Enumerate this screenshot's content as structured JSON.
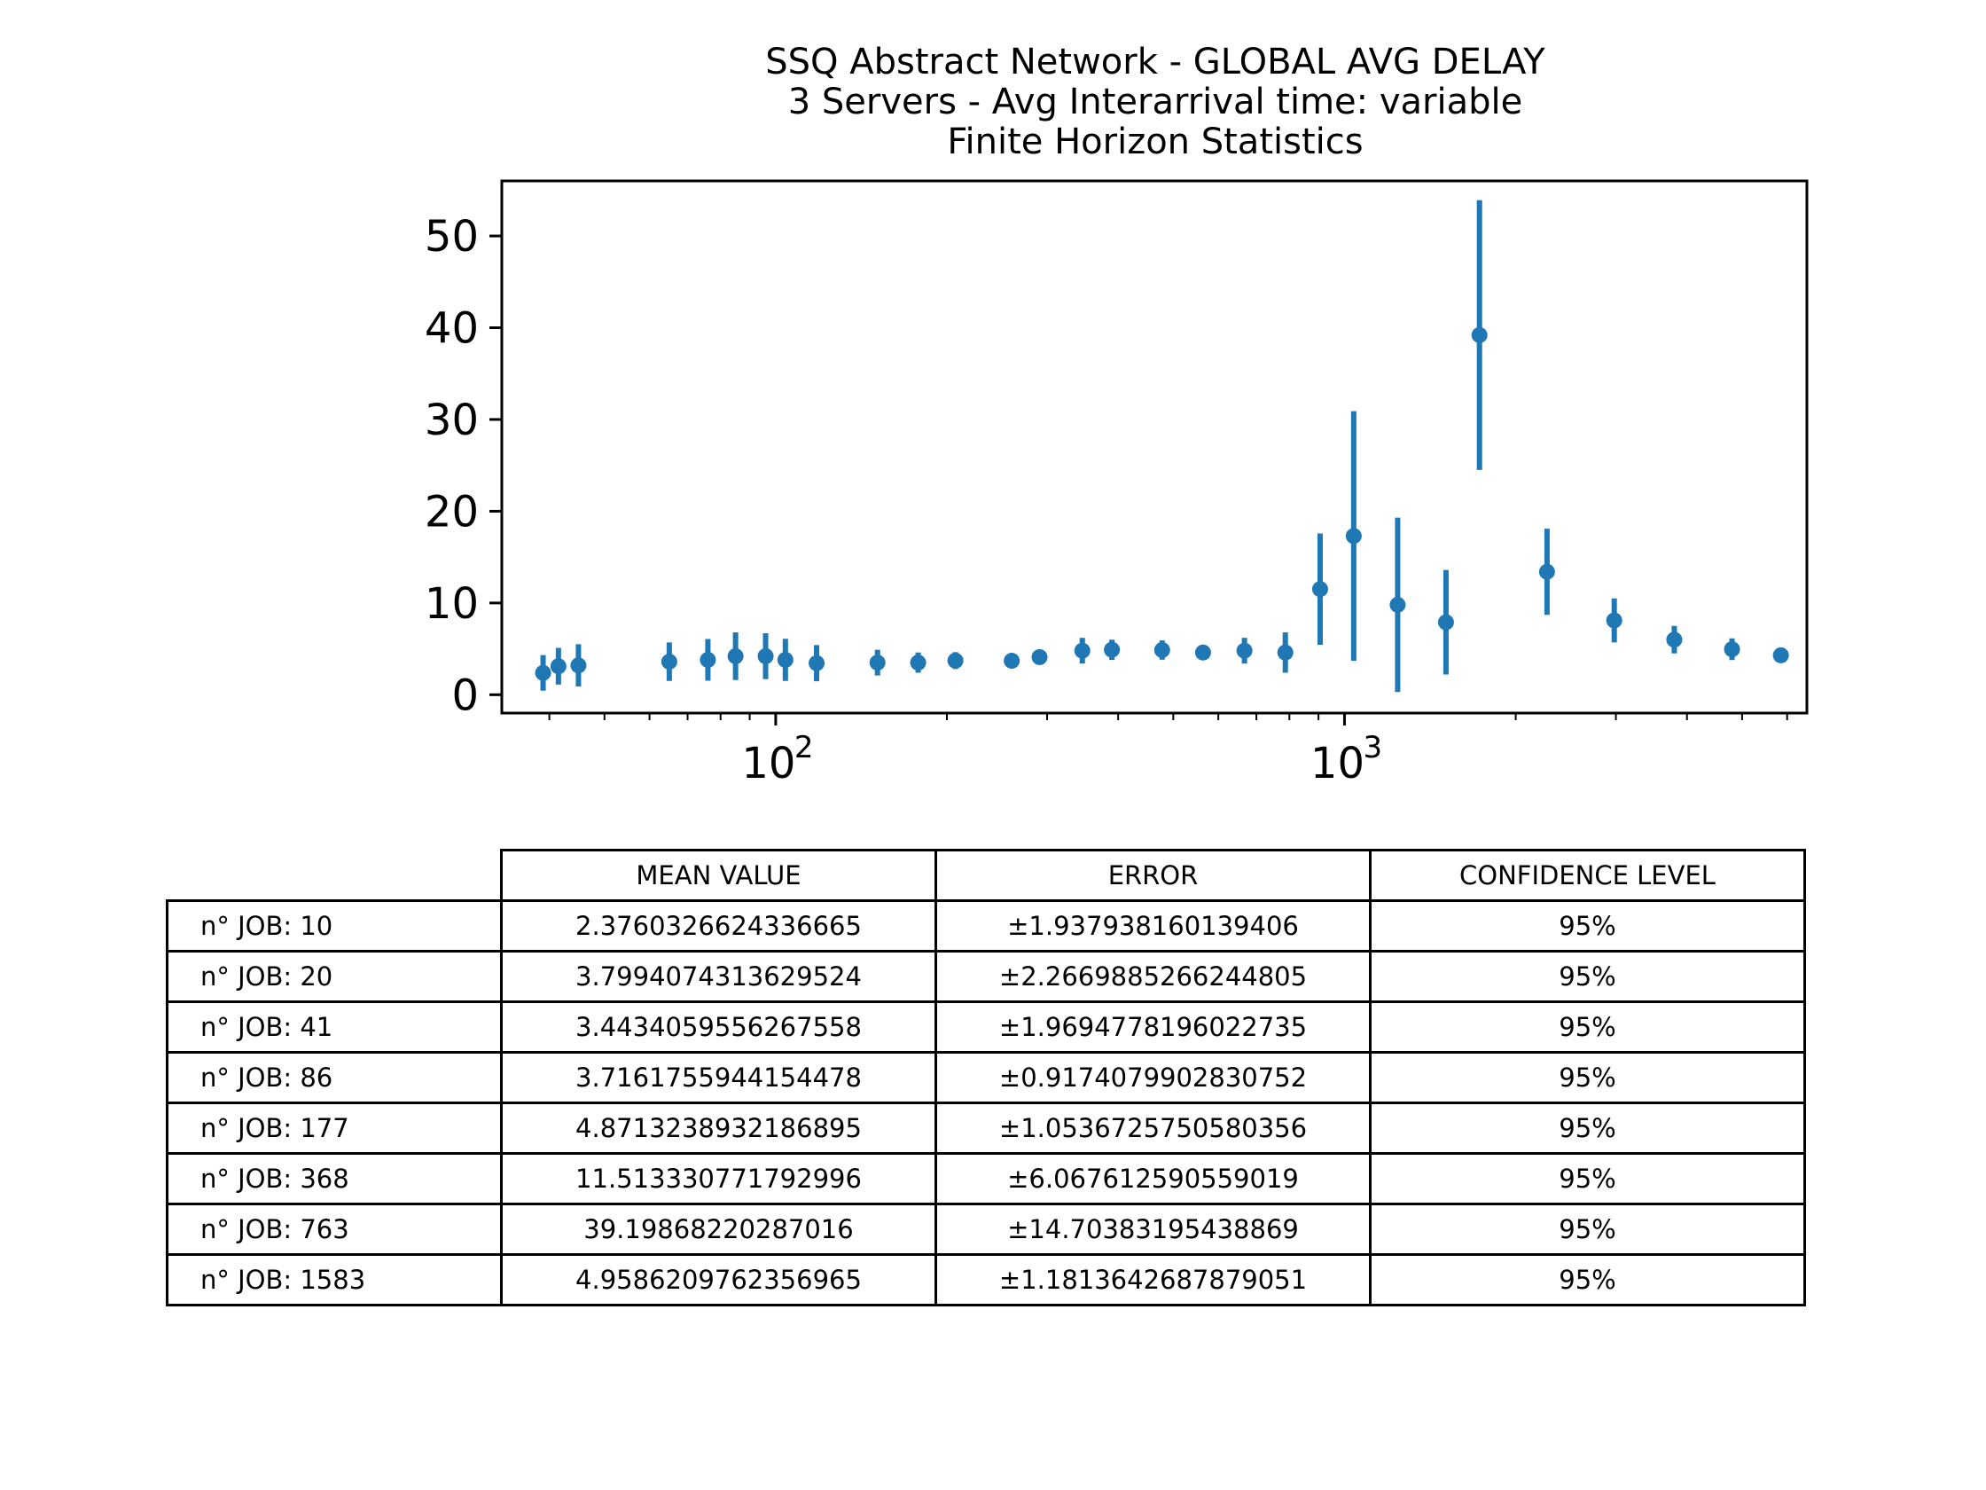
{
  "chart_data": {
    "type": "scatter",
    "title": [
      "SSQ Abstract Network - GLOBAL AVG DELAY",
      "3 Servers -  Avg Interarrival time: variable",
      "Finite Horizon Statistics"
    ],
    "xscale": "log",
    "xlim": [
      33,
      6500
    ],
    "ylim": [
      -2,
      56
    ],
    "yticks": [
      0,
      10,
      20,
      30,
      40,
      50
    ],
    "xticks_major": [
      {
        "base": "10",
        "exp": "2",
        "value": 100
      },
      {
        "base": "10",
        "exp": "3",
        "value": 1000
      }
    ],
    "xticks_minor": [
      40,
      50,
      60,
      70,
      80,
      90,
      200,
      300,
      400,
      500,
      600,
      700,
      800,
      900,
      2000,
      3000,
      4000,
      5000,
      6000
    ],
    "grid": false,
    "color": "#1f77b4",
    "series": [
      {
        "points": [
          {
            "x": 39,
            "y": 2.38,
            "err": 1.94
          },
          {
            "x": 41.5,
            "y": 3.1,
            "err": 2.0
          },
          {
            "x": 45,
            "y": 3.2,
            "err": 2.3
          },
          {
            "x": 65,
            "y": 3.6,
            "err": 2.1
          },
          {
            "x": 76,
            "y": 3.8,
            "err": 2.27
          },
          {
            "x": 85,
            "y": 4.2,
            "err": 2.6
          },
          {
            "x": 96,
            "y": 4.2,
            "err": 2.5
          },
          {
            "x": 104,
            "y": 3.8,
            "err": 2.3
          },
          {
            "x": 118,
            "y": 3.44,
            "err": 1.97
          },
          {
            "x": 151,
            "y": 3.5,
            "err": 1.4
          },
          {
            "x": 178,
            "y": 3.5,
            "err": 1.1
          },
          {
            "x": 207,
            "y": 3.72,
            "err": 0.92
          },
          {
            "x": 260,
            "y": 3.7,
            "err": 0.7
          },
          {
            "x": 291,
            "y": 4.1,
            "err": 0.8
          },
          {
            "x": 346,
            "y": 4.8,
            "err": 1.4
          },
          {
            "x": 390,
            "y": 4.9,
            "err": 1.1
          },
          {
            "x": 478,
            "y": 4.87,
            "err": 1.05
          },
          {
            "x": 564,
            "y": 4.6,
            "err": 0.8
          },
          {
            "x": 667,
            "y": 4.8,
            "err": 1.4
          },
          {
            "x": 787,
            "y": 4.6,
            "err": 2.2
          },
          {
            "x": 906,
            "y": 11.51,
            "err": 6.07
          },
          {
            "x": 1038,
            "y": 17.3,
            "err": 13.6
          },
          {
            "x": 1240,
            "y": 9.8,
            "err": 9.5
          },
          {
            "x": 1508,
            "y": 7.9,
            "err": 5.7
          },
          {
            "x": 1727,
            "y": 39.2,
            "err": 14.7
          },
          {
            "x": 2270,
            "y": 13.4,
            "err": 4.7
          },
          {
            "x": 2980,
            "y": 8.1,
            "err": 2.4
          },
          {
            "x": 3800,
            "y": 6.0,
            "err": 1.5
          },
          {
            "x": 4800,
            "y": 4.96,
            "err": 1.18
          },
          {
            "x": 5850,
            "y": 4.3,
            "err": 0.6
          }
        ]
      }
    ]
  },
  "table": {
    "headers": [
      "MEAN VALUE",
      "ERROR",
      "CONFIDENCE LEVEL"
    ],
    "rows": [
      {
        "label": "n° JOB: 10",
        "mean": "2.3760326624336665",
        "error": "±1.937938160139406",
        "confidence": "95%"
      },
      {
        "label": "n° JOB: 20",
        "mean": "3.7994074313629524",
        "error": "±2.2669885266244805",
        "confidence": "95%"
      },
      {
        "label": "n° JOB: 41",
        "mean": "3.4434059556267558",
        "error": "±1.9694778196022735",
        "confidence": "95%"
      },
      {
        "label": "n° JOB: 86",
        "mean": "3.7161755944154478",
        "error": "±0.9174079902830752",
        "confidence": "95%"
      },
      {
        "label": "n° JOB: 177",
        "mean": "4.8713238932186895",
        "error": "±1.0536725750580356",
        "confidence": "95%"
      },
      {
        "label": "n° JOB: 368",
        "mean": "11.513330771792996",
        "error": "±6.067612590559019",
        "confidence": "95%"
      },
      {
        "label": "n° JOB: 763",
        "mean": "39.19868220287016",
        "error": "±14.70383195438869",
        "confidence": "95%"
      },
      {
        "label": "n° JOB: 1583",
        "mean": "4.9586209762356965",
        "error": "±1.1813642687879051",
        "confidence": "95%"
      }
    ]
  }
}
